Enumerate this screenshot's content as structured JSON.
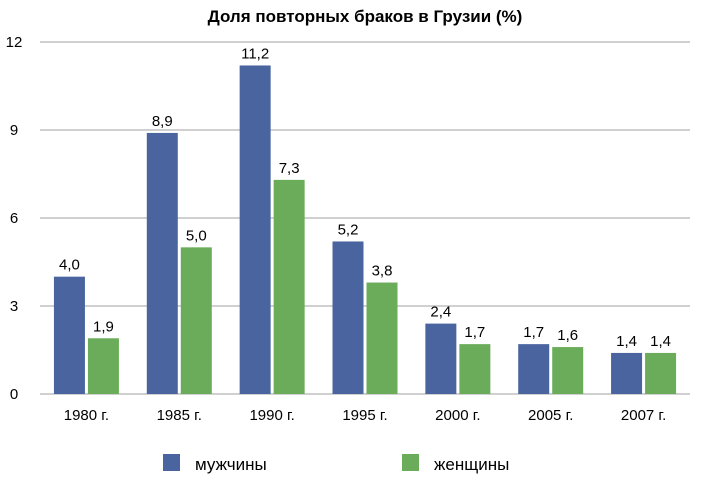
{
  "chart_data": {
    "type": "bar",
    "title": "Доля повторных браков в Грузии (%)",
    "categories": [
      "1980 г.",
      "1985 г.",
      "1990 г.",
      "1995 г.",
      "2000 г.",
      "2005 г.",
      "2007 г."
    ],
    "series": [
      {
        "name": "мужчины",
        "color": "#4a64a0",
        "values": [
          4.0,
          8.9,
          11.2,
          5.2,
          2.4,
          1.7,
          1.4
        ],
        "labels": [
          "4,0",
          "8,9",
          "11,2",
          "5,2",
          "2,4",
          "1,7",
          "1,4"
        ]
      },
      {
        "name": "женщины",
        "color": "#6aac5a",
        "values": [
          1.9,
          5.0,
          7.3,
          3.8,
          1.7,
          1.6,
          1.4
        ],
        "labels": [
          "1,9",
          "5,0",
          "7,3",
          "3,8",
          "1,7",
          "1,6",
          "1,4"
        ]
      }
    ],
    "yticks": [
      0,
      3,
      6,
      9,
      12
    ],
    "ylim": [
      0,
      12
    ],
    "xlabel": "",
    "ylabel": "",
    "grid": true,
    "legend_position": "bottom"
  }
}
